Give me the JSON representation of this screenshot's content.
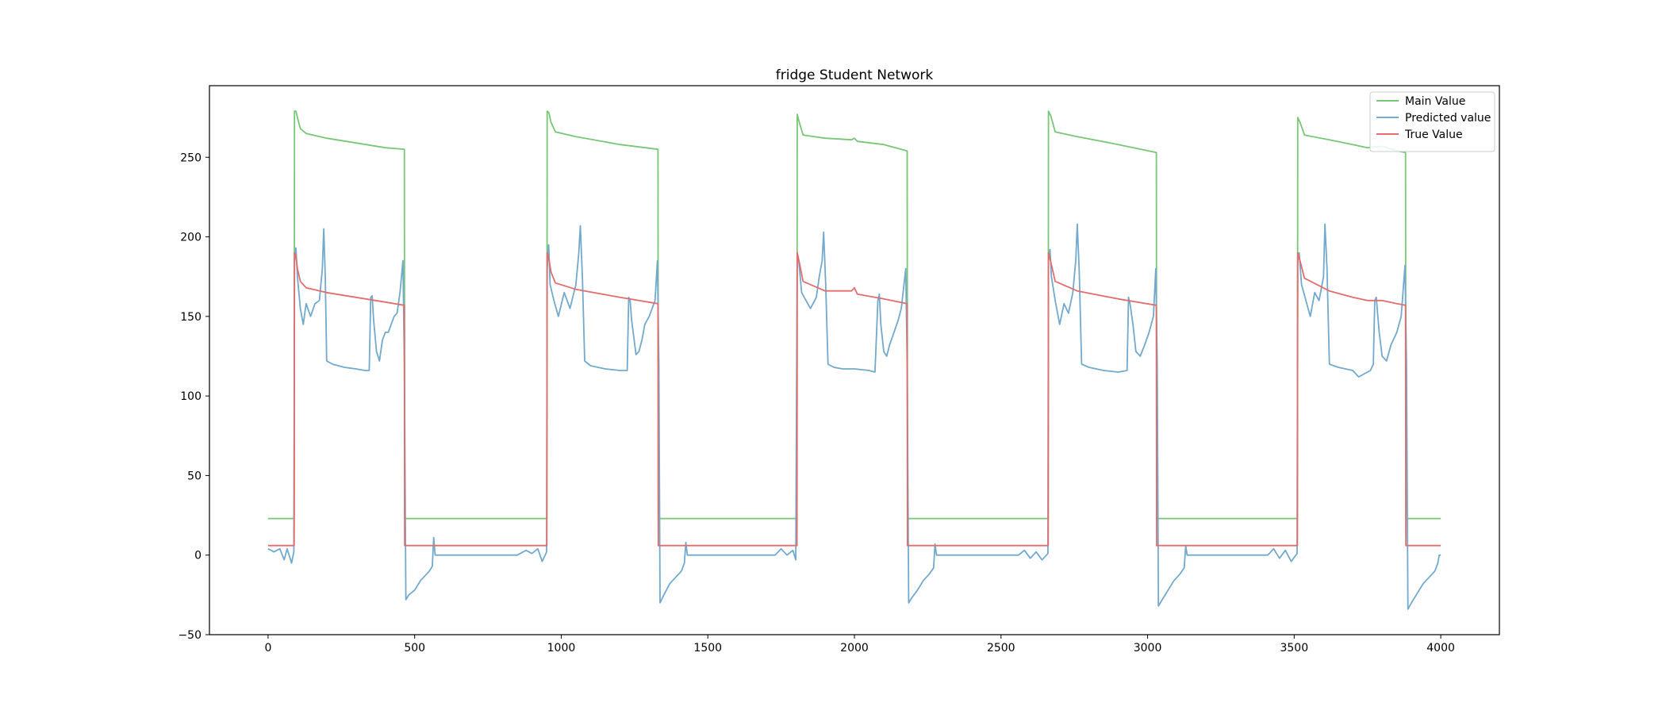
{
  "chart_data": {
    "type": "line",
    "title": "fridge Student Network",
    "xlabel": "",
    "ylabel": "",
    "xlim": [
      -200,
      4200
    ],
    "ylim": [
      -50,
      295
    ],
    "x_ticks": [
      0,
      500,
      1000,
      1500,
      2000,
      2500,
      3000,
      3500,
      4000
    ],
    "y_ticks": [
      -50,
      0,
      50,
      100,
      150,
      200,
      250
    ],
    "grid": false,
    "legend_position": "top-right",
    "series": [
      {
        "name": "Main Value",
        "color": "#77c777",
        "points": [
          [
            0,
            23
          ],
          [
            88,
            23
          ],
          [
            89,
            23
          ],
          [
            90,
            279
          ],
          [
            95,
            279
          ],
          [
            100,
            275
          ],
          [
            110,
            268
          ],
          [
            130,
            265
          ],
          [
            200,
            262
          ],
          [
            300,
            259
          ],
          [
            400,
            256
          ],
          [
            465,
            255
          ],
          [
            466,
            23
          ],
          [
            950,
            23
          ],
          [
            951,
            23
          ],
          [
            952,
            279
          ],
          [
            958,
            278
          ],
          [
            965,
            272
          ],
          [
            980,
            266
          ],
          [
            1050,
            263
          ],
          [
            1200,
            258
          ],
          [
            1330,
            255
          ],
          [
            1331,
            23
          ],
          [
            1803,
            23
          ],
          [
            1804,
            23
          ],
          [
            1805,
            277
          ],
          [
            1812,
            272
          ],
          [
            1825,
            264
          ],
          [
            1900,
            262
          ],
          [
            1990,
            261
          ],
          [
            2000,
            262
          ],
          [
            2010,
            260
          ],
          [
            2100,
            258
          ],
          [
            2180,
            254
          ],
          [
            2181,
            23
          ],
          [
            2660,
            23
          ],
          [
            2661,
            23
          ],
          [
            2662,
            279
          ],
          [
            2670,
            276
          ],
          [
            2685,
            266
          ],
          [
            2760,
            263
          ],
          [
            2900,
            258
          ],
          [
            3030,
            253
          ],
          [
            3031,
            23
          ],
          [
            3510,
            23
          ],
          [
            3511,
            23
          ],
          [
            3512,
            275
          ],
          [
            3520,
            272
          ],
          [
            3535,
            264
          ],
          [
            3620,
            261
          ],
          [
            3700,
            258
          ],
          [
            3750,
            256
          ],
          [
            3800,
            257
          ],
          [
            3850,
            254
          ],
          [
            3880,
            253
          ],
          [
            3881,
            23
          ],
          [
            4000,
            23
          ]
        ]
      },
      {
        "name": "Predicted value",
        "color": "#72a9cc",
        "points": [
          [
            0,
            4
          ],
          [
            20,
            2
          ],
          [
            40,
            4
          ],
          [
            55,
            -3
          ],
          [
            65,
            4
          ],
          [
            80,
            -5
          ],
          [
            88,
            2
          ],
          [
            90,
            185
          ],
          [
            95,
            193
          ],
          [
            100,
            175
          ],
          [
            110,
            155
          ],
          [
            120,
            145
          ],
          [
            130,
            158
          ],
          [
            145,
            150
          ],
          [
            160,
            158
          ],
          [
            175,
            160
          ],
          [
            185,
            180
          ],
          [
            190,
            205
          ],
          [
            195,
            175
          ],
          [
            200,
            122
          ],
          [
            220,
            120
          ],
          [
            260,
            118
          ],
          [
            300,
            117
          ],
          [
            330,
            116
          ],
          [
            345,
            116
          ],
          [
            350,
            162
          ],
          [
            355,
            163
          ],
          [
            360,
            148
          ],
          [
            370,
            128
          ],
          [
            380,
            122
          ],
          [
            390,
            135
          ],
          [
            400,
            140
          ],
          [
            410,
            140
          ],
          [
            420,
            145
          ],
          [
            430,
            150
          ],
          [
            440,
            152
          ],
          [
            450,
            165
          ],
          [
            460,
            185
          ],
          [
            465,
            120
          ],
          [
            470,
            -28
          ],
          [
            480,
            -25
          ],
          [
            500,
            -22
          ],
          [
            520,
            -16
          ],
          [
            540,
            -12
          ],
          [
            550,
            -10
          ],
          [
            560,
            -7
          ],
          [
            565,
            11
          ],
          [
            570,
            0
          ],
          [
            700,
            0
          ],
          [
            850,
            0
          ],
          [
            880,
            3
          ],
          [
            900,
            1
          ],
          [
            920,
            4
          ],
          [
            935,
            -4
          ],
          [
            950,
            2
          ],
          [
            952,
            180
          ],
          [
            957,
            195
          ],
          [
            962,
            170
          ],
          [
            975,
            160
          ],
          [
            990,
            150
          ],
          [
            1010,
            165
          ],
          [
            1030,
            155
          ],
          [
            1050,
            170
          ],
          [
            1060,
            190
          ],
          [
            1065,
            207
          ],
          [
            1072,
            175
          ],
          [
            1080,
            122
          ],
          [
            1100,
            119
          ],
          [
            1150,
            117
          ],
          [
            1200,
            116
          ],
          [
            1225,
            116
          ],
          [
            1230,
            162
          ],
          [
            1235,
            160
          ],
          [
            1240,
            148
          ],
          [
            1255,
            126
          ],
          [
            1265,
            128
          ],
          [
            1275,
            135
          ],
          [
            1285,
            145
          ],
          [
            1300,
            150
          ],
          [
            1320,
            160
          ],
          [
            1328,
            185
          ],
          [
            1333,
            120
          ],
          [
            1337,
            -30
          ],
          [
            1350,
            -25
          ],
          [
            1370,
            -18
          ],
          [
            1390,
            -14
          ],
          [
            1410,
            -10
          ],
          [
            1420,
            -5
          ],
          [
            1425,
            8
          ],
          [
            1430,
            0
          ],
          [
            1600,
            0
          ],
          [
            1730,
            0
          ],
          [
            1750,
            4
          ],
          [
            1770,
            0
          ],
          [
            1790,
            3
          ],
          [
            1800,
            -3
          ],
          [
            1805,
            190
          ],
          [
            1810,
            185
          ],
          [
            1820,
            165
          ],
          [
            1835,
            160
          ],
          [
            1850,
            155
          ],
          [
            1870,
            162
          ],
          [
            1880,
            175
          ],
          [
            1890,
            185
          ],
          [
            1895,
            203
          ],
          [
            1902,
            170
          ],
          [
            1910,
            120
          ],
          [
            1930,
            118
          ],
          [
            1960,
            117
          ],
          [
            2000,
            117
          ],
          [
            2050,
            116
          ],
          [
            2070,
            115
          ],
          [
            2080,
            160
          ],
          [
            2085,
            164
          ],
          [
            2090,
            145
          ],
          [
            2100,
            128
          ],
          [
            2110,
            125
          ],
          [
            2120,
            132
          ],
          [
            2135,
            140
          ],
          [
            2150,
            148
          ],
          [
            2160,
            155
          ],
          [
            2175,
            180
          ],
          [
            2180,
            120
          ],
          [
            2185,
            -30
          ],
          [
            2195,
            -27
          ],
          [
            2215,
            -22
          ],
          [
            2235,
            -16
          ],
          [
            2255,
            -12
          ],
          [
            2270,
            -8
          ],
          [
            2275,
            7
          ],
          [
            2280,
            0
          ],
          [
            2450,
            0
          ],
          [
            2560,
            0
          ],
          [
            2580,
            3
          ],
          [
            2600,
            -2
          ],
          [
            2620,
            2
          ],
          [
            2640,
            -3
          ],
          [
            2660,
            1
          ],
          [
            2662,
            185
          ],
          [
            2667,
            192
          ],
          [
            2672,
            175
          ],
          [
            2685,
            160
          ],
          [
            2700,
            145
          ],
          [
            2715,
            158
          ],
          [
            2730,
            152
          ],
          [
            2745,
            165
          ],
          [
            2755,
            185
          ],
          [
            2760,
            208
          ],
          [
            2767,
            178
          ],
          [
            2775,
            120
          ],
          [
            2800,
            118
          ],
          [
            2850,
            116
          ],
          [
            2900,
            115
          ],
          [
            2930,
            116
          ],
          [
            2935,
            162
          ],
          [
            2940,
            158
          ],
          [
            2950,
            145
          ],
          [
            2960,
            128
          ],
          [
            2975,
            125
          ],
          [
            2990,
            132
          ],
          [
            3005,
            140
          ],
          [
            3020,
            150
          ],
          [
            3028,
            180
          ],
          [
            3033,
            120
          ],
          [
            3037,
            -32
          ],
          [
            3050,
            -28
          ],
          [
            3070,
            -22
          ],
          [
            3090,
            -16
          ],
          [
            3110,
            -12
          ],
          [
            3125,
            -8
          ],
          [
            3130,
            6
          ],
          [
            3135,
            0
          ],
          [
            3350,
            0
          ],
          [
            3410,
            0
          ],
          [
            3430,
            4
          ],
          [
            3450,
            -2
          ],
          [
            3470,
            3
          ],
          [
            3490,
            -4
          ],
          [
            3510,
            1
          ],
          [
            3512,
            185
          ],
          [
            3517,
            190
          ],
          [
            3525,
            170
          ],
          [
            3540,
            160
          ],
          [
            3555,
            150
          ],
          [
            3570,
            165
          ],
          [
            3585,
            160
          ],
          [
            3600,
            175
          ],
          [
            3605,
            208
          ],
          [
            3612,
            180
          ],
          [
            3620,
            120
          ],
          [
            3650,
            118
          ],
          [
            3700,
            116
          ],
          [
            3720,
            112
          ],
          [
            3740,
            114
          ],
          [
            3760,
            116
          ],
          [
            3770,
            120
          ],
          [
            3775,
            160
          ],
          [
            3780,
            162
          ],
          [
            3790,
            140
          ],
          [
            3800,
            125
          ],
          [
            3815,
            122
          ],
          [
            3830,
            132
          ],
          [
            3850,
            140
          ],
          [
            3865,
            150
          ],
          [
            3878,
            182
          ],
          [
            3883,
            120
          ],
          [
            3888,
            -34
          ],
          [
            3900,
            -30
          ],
          [
            3920,
            -24
          ],
          [
            3940,
            -18
          ],
          [
            3960,
            -14
          ],
          [
            3980,
            -10
          ],
          [
            3990,
            -5
          ],
          [
            3995,
            0
          ],
          [
            4000,
            0
          ]
        ]
      },
      {
        "name": "True Value",
        "color": "#e26d6d",
        "points": [
          [
            0,
            6
          ],
          [
            88,
            6
          ],
          [
            89,
            6
          ],
          [
            90,
            190
          ],
          [
            95,
            188
          ],
          [
            100,
            180
          ],
          [
            110,
            172
          ],
          [
            130,
            168
          ],
          [
            200,
            165
          ],
          [
            300,
            162
          ],
          [
            400,
            159
          ],
          [
            465,
            157
          ],
          [
            466,
            6
          ],
          [
            950,
            6
          ],
          [
            951,
            6
          ],
          [
            952,
            190
          ],
          [
            958,
            186
          ],
          [
            965,
            178
          ],
          [
            980,
            171
          ],
          [
            1050,
            167
          ],
          [
            1200,
            162
          ],
          [
            1330,
            158
          ],
          [
            1331,
            6
          ],
          [
            1803,
            6
          ],
          [
            1804,
            6
          ],
          [
            1805,
            190
          ],
          [
            1812,
            184
          ],
          [
            1825,
            172
          ],
          [
            1900,
            166
          ],
          [
            1990,
            166
          ],
          [
            2000,
            168
          ],
          [
            2010,
            164
          ],
          [
            2100,
            161
          ],
          [
            2180,
            158
          ],
          [
            2181,
            6
          ],
          [
            2660,
            6
          ],
          [
            2661,
            6
          ],
          [
            2662,
            190
          ],
          [
            2670,
            184
          ],
          [
            2685,
            172
          ],
          [
            2760,
            166
          ],
          [
            2900,
            161
          ],
          [
            3030,
            157
          ],
          [
            3031,
            6
          ],
          [
            3510,
            6
          ],
          [
            3511,
            6
          ],
          [
            3512,
            190
          ],
          [
            3520,
            185
          ],
          [
            3535,
            174
          ],
          [
            3620,
            166
          ],
          [
            3700,
            162
          ],
          [
            3750,
            160
          ],
          [
            3800,
            160
          ],
          [
            3850,
            158
          ],
          [
            3880,
            157
          ],
          [
            3881,
            6
          ],
          [
            4000,
            6
          ]
        ]
      }
    ]
  }
}
